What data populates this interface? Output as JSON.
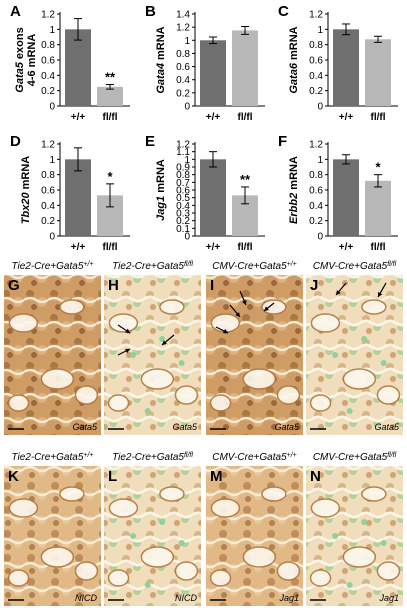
{
  "chart_data": [
    {
      "letter": "A",
      "type": "bar",
      "ylabel": "Gata5 exons 4-6 mRNA",
      "ylabel_lines": [
        "Gata5 exons",
        "4-6 mRNA"
      ],
      "ylabel_italic_word": "Gata5",
      "categories": [
        "+/+",
        "fl/fl"
      ],
      "values": [
        1.0,
        0.25
      ],
      "errors": [
        0.14,
        0.03
      ],
      "significance": [
        "",
        "**"
      ],
      "ylim": [
        0,
        1.2
      ],
      "yticks": [
        "0",
        "0.2",
        "0.4",
        "0.6",
        "0.8",
        "1",
        "1.2"
      ]
    },
    {
      "letter": "B",
      "type": "bar",
      "ylabel": "Gata4 mRNA",
      "ylabel_lines": [
        "Gata4 mRNA"
      ],
      "ylabel_italic_word": "Gata4",
      "categories": [
        "+/+",
        "fl/fl"
      ],
      "values": [
        1.0,
        1.15
      ],
      "errors": [
        0.05,
        0.06
      ],
      "significance": [
        "",
        ""
      ],
      "ylim": [
        0,
        1.4
      ],
      "yticks": [
        "0",
        "0.2",
        "0.4",
        "0.6",
        "0.8",
        "1",
        "1.2",
        "1.4"
      ]
    },
    {
      "letter": "C",
      "type": "bar",
      "ylabel": "Gata6 mRNA",
      "ylabel_lines": [
        "Gata6 mRNA"
      ],
      "ylabel_italic_word": "Gata6",
      "categories": [
        "+/+",
        "fl/fl"
      ],
      "values": [
        1.0,
        0.87
      ],
      "errors": [
        0.07,
        0.04
      ],
      "significance": [
        "",
        ""
      ],
      "ylim": [
        0,
        1.2
      ],
      "yticks": [
        "0",
        "0.2",
        "0.4",
        "0.6",
        "0.8",
        "1",
        "1.2"
      ]
    },
    {
      "letter": "D",
      "type": "bar",
      "ylabel": "Tbx20 mRNA",
      "ylabel_lines": [
        "Tbx20 mRNA"
      ],
      "ylabel_italic_word": "Tbx20",
      "categories": [
        "+/+",
        "fl/fl"
      ],
      "values": [
        1.0,
        0.53
      ],
      "errors": [
        0.15,
        0.15
      ],
      "significance": [
        "",
        "*"
      ],
      "ylim": [
        0,
        1.2
      ],
      "yticks": [
        "0",
        "0.2",
        "0.4",
        "0.6",
        "0.8",
        "1",
        "1.2"
      ]
    },
    {
      "letter": "E",
      "type": "bar",
      "ylabel": "Jag1 mRNA",
      "ylabel_lines": [
        "Jag1 mRNA"
      ],
      "ylabel_italic_word": "Jag1",
      "categories": [
        "+/+",
        "fl/fl"
      ],
      "values": [
        1.0,
        0.53
      ],
      "errors": [
        0.1,
        0.11
      ],
      "significance": [
        "",
        "**"
      ],
      "ylim": [
        0,
        1.2
      ],
      "yticks": [
        "0",
        "0.1",
        "0.2",
        "0.3",
        "0.4",
        "0.5",
        "0.6",
        "0.7",
        "0.8",
        "0.9",
        "1",
        "1.1",
        "1.2"
      ]
    },
    {
      "letter": "F",
      "type": "bar",
      "ylabel": "Erbb2 mRNA",
      "ylabel_lines": [
        "Erbb2 mRNA"
      ],
      "ylabel_italic_word": "Erbb2",
      "categories": [
        "+/+",
        "fl/fl"
      ],
      "values": [
        1.0,
        0.72
      ],
      "errors": [
        0.06,
        0.08
      ],
      "significance": [
        "",
        "*"
      ],
      "ylim": [
        0,
        1.2
      ],
      "yticks": [
        "0",
        "0.2",
        "0.4",
        "0.6",
        "0.8",
        "1",
        "1.2"
      ]
    }
  ],
  "colors": {
    "wildtype_bar": "#6f6f6f",
    "mutant_bar": "#b8b8b8",
    "tissue_brown": "#b9773e",
    "tissue_light": "#f3e2c4",
    "negative_green": "#8fd19a"
  },
  "micrographs": [
    {
      "letter": "G",
      "genotype": "Tie2-Cre",
      "allele": "Gata5",
      "sup": "+/+",
      "stain": "Gata5",
      "arrows": 0
    },
    {
      "letter": "H",
      "genotype": "Tie2-Cre",
      "allele": "Gata5",
      "sup": "fl/fl",
      "stain": "Gata5",
      "arrows": 3
    },
    {
      "letter": "I",
      "genotype": "CMV-Cre",
      "allele": "Gata5",
      "sup": "+/+",
      "stain": "Gata5",
      "arrows": 4
    },
    {
      "letter": "J",
      "genotype": "CMV-Cre",
      "allele": "Gata5",
      "sup": "fl/fl",
      "stain": "Gata5",
      "arrows": 2
    },
    {
      "letter": "K",
      "genotype": "Tie2-Cre",
      "allele": "Gata5",
      "sup": "+/+",
      "stain": "NICD",
      "arrows": 0
    },
    {
      "letter": "L",
      "genotype": "Tie2-Cre",
      "allele": "Gata5",
      "sup": "fl/fl",
      "stain": "NICD",
      "arrows": 0
    },
    {
      "letter": "M",
      "genotype": "CMV-Cre",
      "allele": "Gata5",
      "sup": "+/+",
      "stain": "Jag1",
      "arrows": 0
    },
    {
      "letter": "N",
      "genotype": "CMV-Cre",
      "allele": "Gata5",
      "sup": "fl/fl",
      "stain": "Jag1",
      "arrows": 0
    }
  ]
}
